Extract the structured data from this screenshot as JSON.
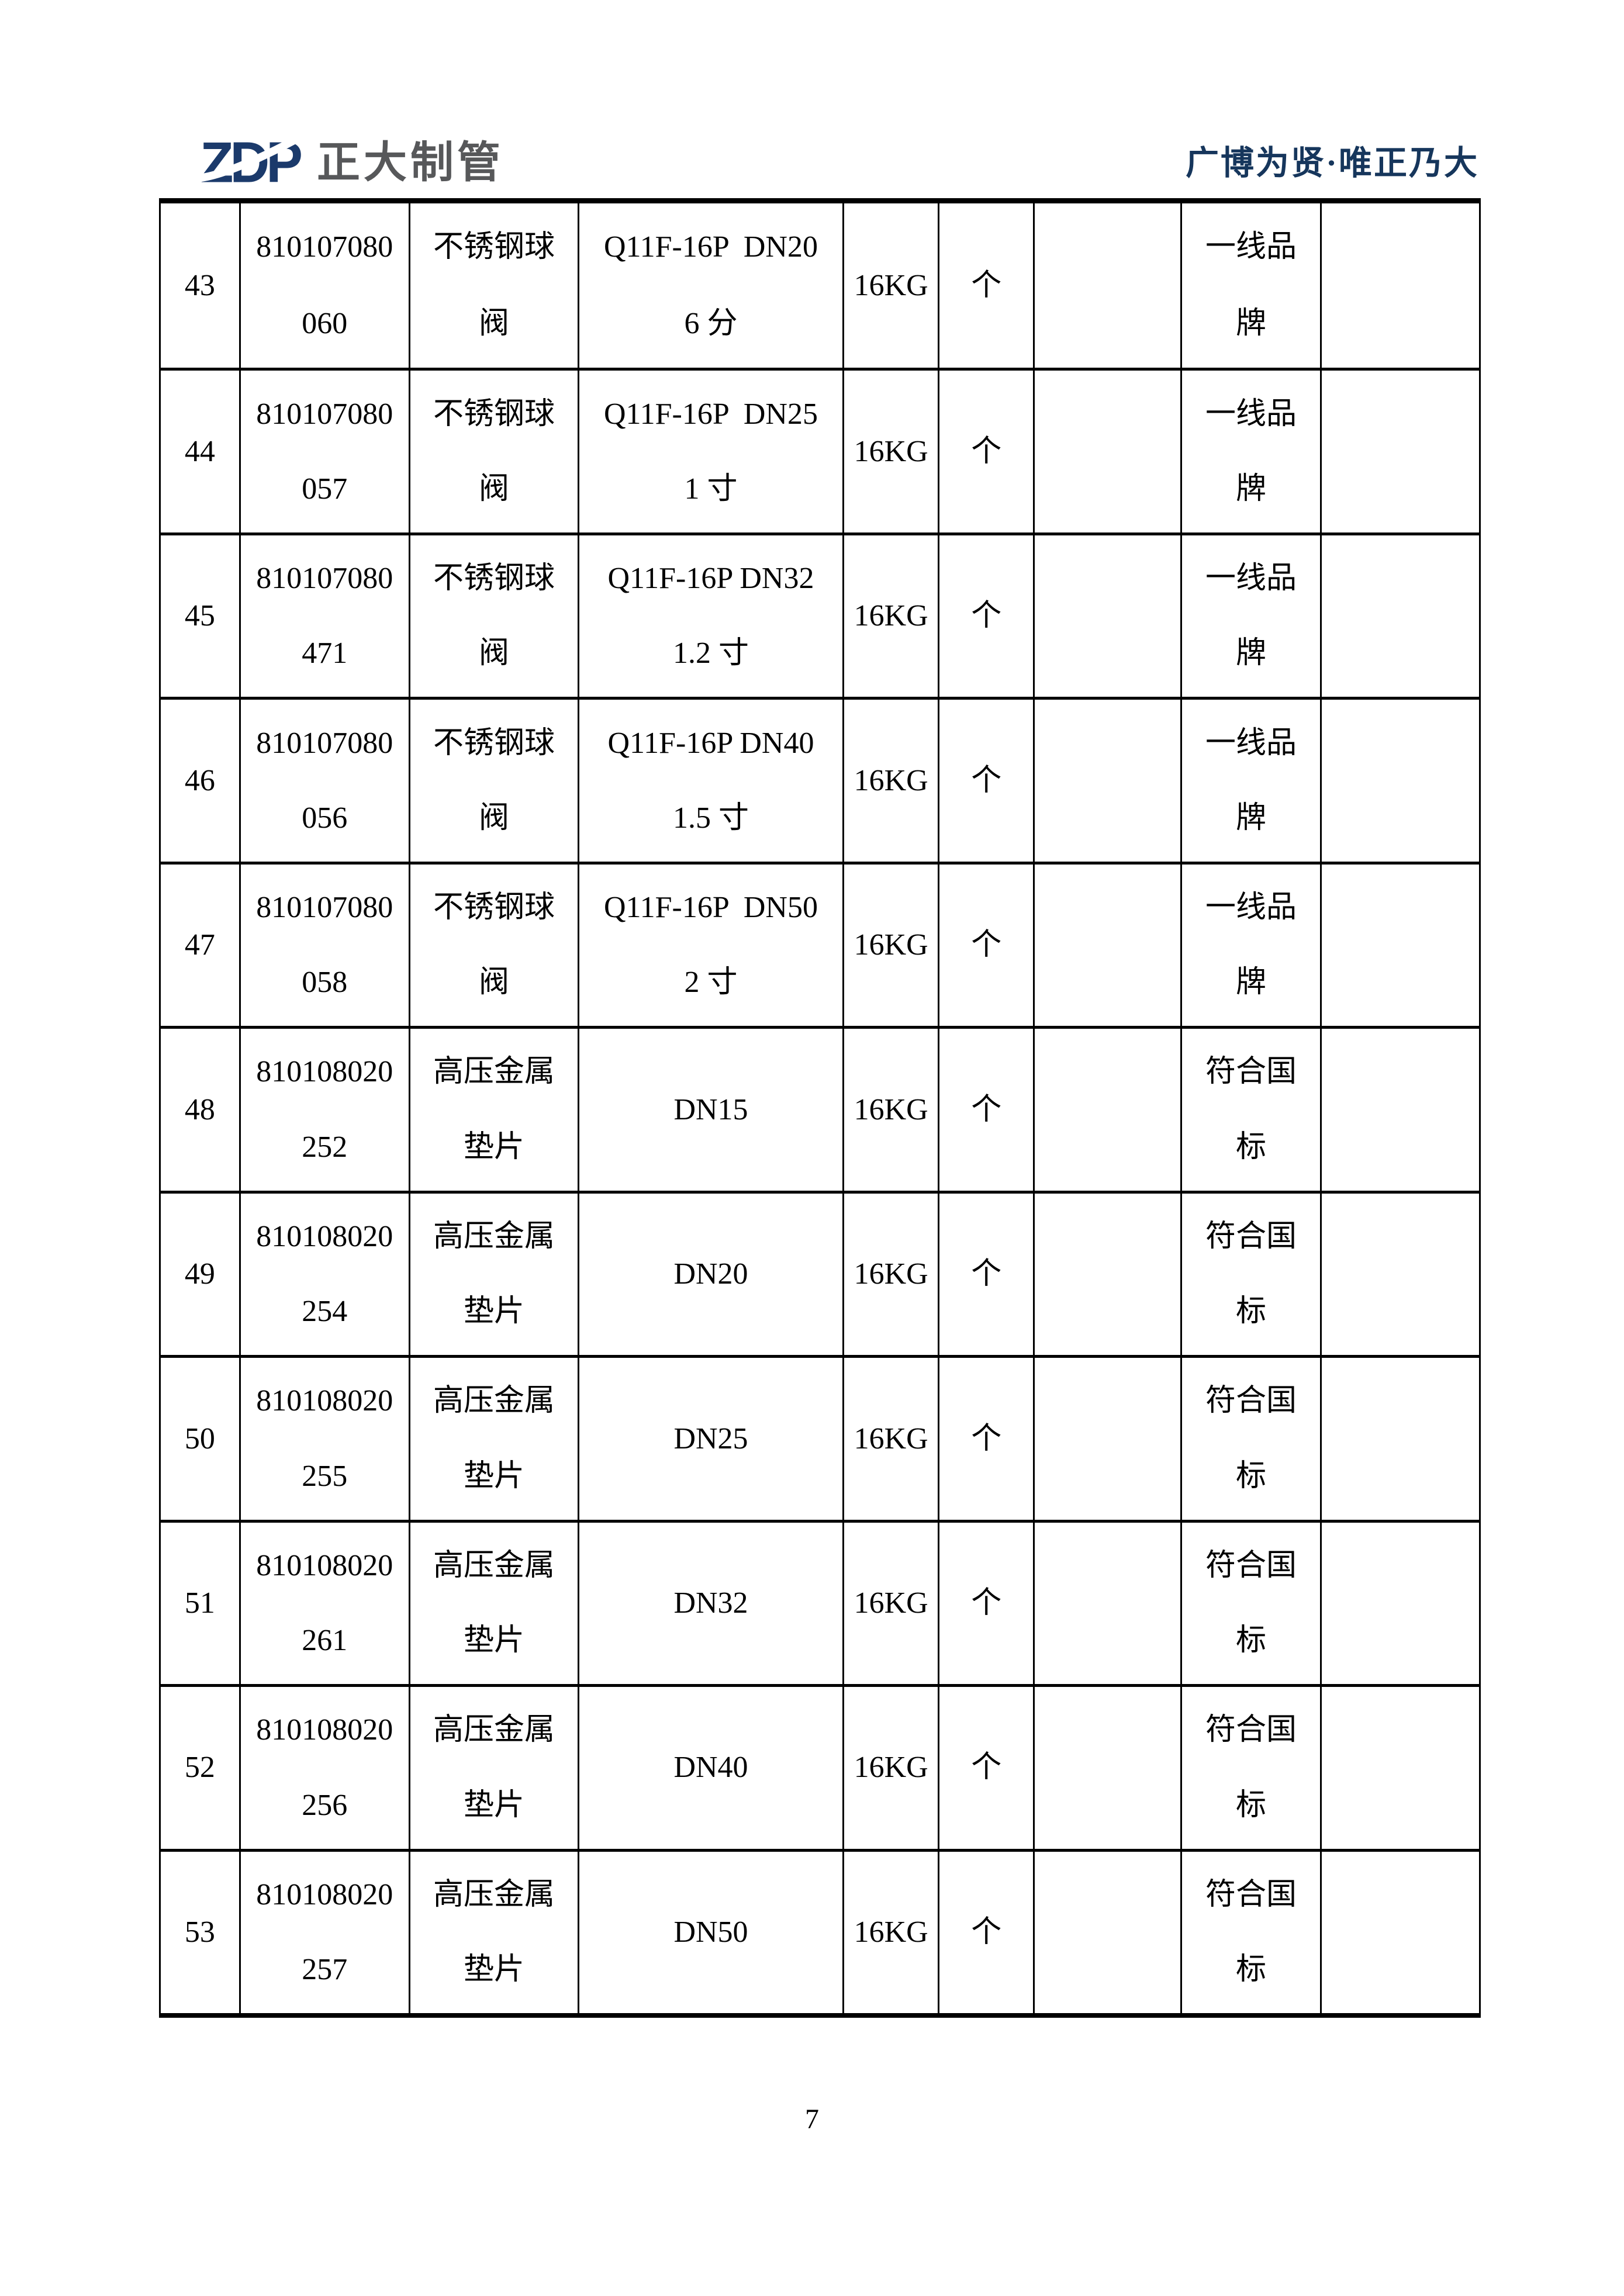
{
  "header": {
    "logo_mark": "ZDP",
    "company_name": "正大制管",
    "slogan": "广博为贤·唯正乃大"
  },
  "colors": {
    "logo_navy": "#1b3a6b",
    "logo_gray": "#57585a",
    "slogan_navy": "#16365c",
    "table_line": "#000000"
  },
  "table": {
    "columns": [
      {
        "key": "row-number"
      },
      {
        "key": "product-code"
      },
      {
        "key": "product-name"
      },
      {
        "key": "spec-model"
      },
      {
        "key": "pressure-rating"
      },
      {
        "key": "unit"
      },
      {
        "key": "quantity"
      },
      {
        "key": "brand-note"
      },
      {
        "key": "remark"
      }
    ],
    "rows": [
      {
        "cells": [
          [
            "43"
          ],
          [
            "810107080",
            "060"
          ],
          [
            "不锈钢球",
            "阀"
          ],
          [
            "Q11F-16P  DN20",
            "6 分"
          ],
          [
            "16KG"
          ],
          [
            "个"
          ],
          [],
          [
            "一线品",
            "牌"
          ],
          []
        ]
      },
      {
        "cells": [
          [
            "44"
          ],
          [
            "810107080",
            "057"
          ],
          [
            "不锈钢球",
            "阀"
          ],
          [
            "Q11F-16P  DN25",
            "1 寸"
          ],
          [
            "16KG"
          ],
          [
            "个"
          ],
          [],
          [
            "一线品",
            "牌"
          ],
          []
        ]
      },
      {
        "cells": [
          [
            "45"
          ],
          [
            "810107080",
            "471"
          ],
          [
            "不锈钢球",
            "阀"
          ],
          [
            "Q11F-16P DN32",
            "1.2 寸"
          ],
          [
            "16KG"
          ],
          [
            "个"
          ],
          [],
          [
            "一线品",
            "牌"
          ],
          []
        ]
      },
      {
        "cells": [
          [
            "46"
          ],
          [
            "810107080",
            "056"
          ],
          [
            "不锈钢球",
            "阀"
          ],
          [
            "Q11F-16P DN40",
            "1.5 寸"
          ],
          [
            "16KG"
          ],
          [
            "个"
          ],
          [],
          [
            "一线品",
            "牌"
          ],
          []
        ]
      },
      {
        "cells": [
          [
            "47"
          ],
          [
            "810107080",
            "058"
          ],
          [
            "不锈钢球",
            "阀"
          ],
          [
            "Q11F-16P  DN50",
            "2 寸"
          ],
          [
            "16KG"
          ],
          [
            "个"
          ],
          [],
          [
            "一线品",
            "牌"
          ],
          []
        ]
      },
      {
        "cells": [
          [
            "48"
          ],
          [
            "810108020",
            "252"
          ],
          [
            "高压金属",
            "垫片"
          ],
          [
            "DN15"
          ],
          [
            "16KG"
          ],
          [
            "个"
          ],
          [],
          [
            "符合国",
            "标"
          ],
          []
        ]
      },
      {
        "cells": [
          [
            "49"
          ],
          [
            "810108020",
            "254"
          ],
          [
            "高压金属",
            "垫片"
          ],
          [
            "DN20"
          ],
          [
            "16KG"
          ],
          [
            "个"
          ],
          [],
          [
            "符合国",
            "标"
          ],
          []
        ]
      },
      {
        "cells": [
          [
            "50"
          ],
          [
            "810108020",
            "255"
          ],
          [
            "高压金属",
            "垫片"
          ],
          [
            "DN25"
          ],
          [
            "16KG"
          ],
          [
            "个"
          ],
          [],
          [
            "符合国",
            "标"
          ],
          []
        ]
      },
      {
        "cells": [
          [
            "51"
          ],
          [
            "810108020",
            "261"
          ],
          [
            "高压金属",
            "垫片"
          ],
          [
            "DN32"
          ],
          [
            "16KG"
          ],
          [
            "个"
          ],
          [],
          [
            "符合国",
            "标"
          ],
          []
        ]
      },
      {
        "cells": [
          [
            "52"
          ],
          [
            "810108020",
            "256"
          ],
          [
            "高压金属",
            "垫片"
          ],
          [
            "DN40"
          ],
          [
            "16KG"
          ],
          [
            "个"
          ],
          [],
          [
            "符合国",
            "标"
          ],
          []
        ]
      },
      {
        "cells": [
          [
            "53"
          ],
          [
            "810108020",
            "257"
          ],
          [
            "高压金属",
            "垫片"
          ],
          [
            "DN50"
          ],
          [
            "16KG"
          ],
          [
            "个"
          ],
          [],
          [
            "符合国",
            "标"
          ],
          []
        ]
      }
    ]
  },
  "footer": {
    "page_number": "7"
  }
}
